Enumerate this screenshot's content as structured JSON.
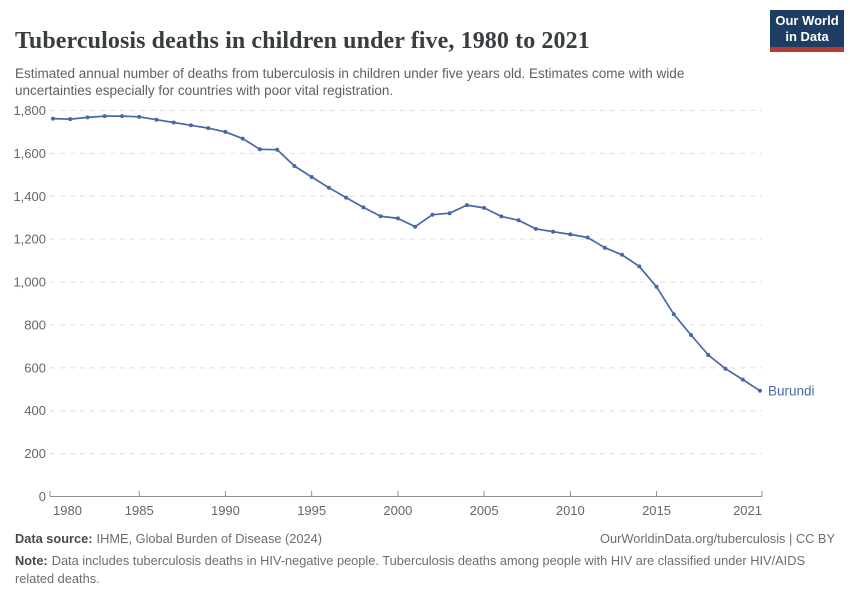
{
  "header": {
    "title": "Tuberculosis deaths in children under five, 1980 to 2021",
    "subtitle": "Estimated annual number of deaths from tuberculosis in children under five years old. Estimates come with wide uncertainties especially for countries with poor vital registration.",
    "logo_line1": "Our World",
    "logo_line2": "in Data"
  },
  "chart_data": {
    "type": "line",
    "title": "Tuberculosis deaths in children under five, 1980 to 2021",
    "xlabel": "",
    "ylabel": "",
    "x": [
      1980,
      1981,
      1982,
      1983,
      1984,
      1985,
      1986,
      1987,
      1988,
      1989,
      1990,
      1991,
      1992,
      1993,
      1994,
      1995,
      1996,
      1997,
      1998,
      1999,
      2000,
      2001,
      2002,
      2003,
      2004,
      2005,
      2006,
      2007,
      2008,
      2009,
      2010,
      2011,
      2012,
      2013,
      2014,
      2015,
      2016,
      2017,
      2018,
      2019,
      2020,
      2021
    ],
    "series": [
      {
        "name": "Burundi",
        "values": [
          1762,
          1760,
          1768,
          1774,
          1774,
          1770,
          1757,
          1744,
          1731,
          1718,
          1700,
          1669,
          1619,
          1617,
          1541,
          1490,
          1440,
          1394,
          1348,
          1307,
          1297,
          1258,
          1314,
          1321,
          1359,
          1346,
          1306,
          1288,
          1248,
          1235,
          1222,
          1208,
          1160,
          1127,
          1073,
          978,
          850,
          753,
          660,
          596,
          545,
          493
        ]
      }
    ],
    "end_label": "Burundi",
    "xlim": [
      1980,
      2021
    ],
    "ylim": [
      0,
      1800
    ],
    "x_ticks": [
      1980,
      1985,
      1990,
      1995,
      2000,
      2005,
      2010,
      2015,
      2021
    ],
    "y_ticks": [
      0,
      200,
      400,
      600,
      800,
      1000,
      1200,
      1400,
      1600,
      1800
    ],
    "grid": "horizontal dashed",
    "legend_position": "end-of-line label"
  },
  "footer": {
    "source_label": "Data source:",
    "source_value": "IHME, Global Burden of Disease (2024)",
    "attribution": "OurWorldinData.org/tuberculosis | CC BY",
    "note_label": "Note:",
    "note_value": "Data includes tuberculosis deaths in HIV-negative people. Tuberculosis deaths among people with HIV are classified under HIV/AIDS related deaths."
  },
  "colors": {
    "line": "#4668a8",
    "grid": "#e0e0e0",
    "axis": "#8f8f8f",
    "tick_text": "#666666",
    "title_text": "#383d40",
    "logo_bg": "#1d3d63",
    "logo_stripe": "#b23c32"
  }
}
